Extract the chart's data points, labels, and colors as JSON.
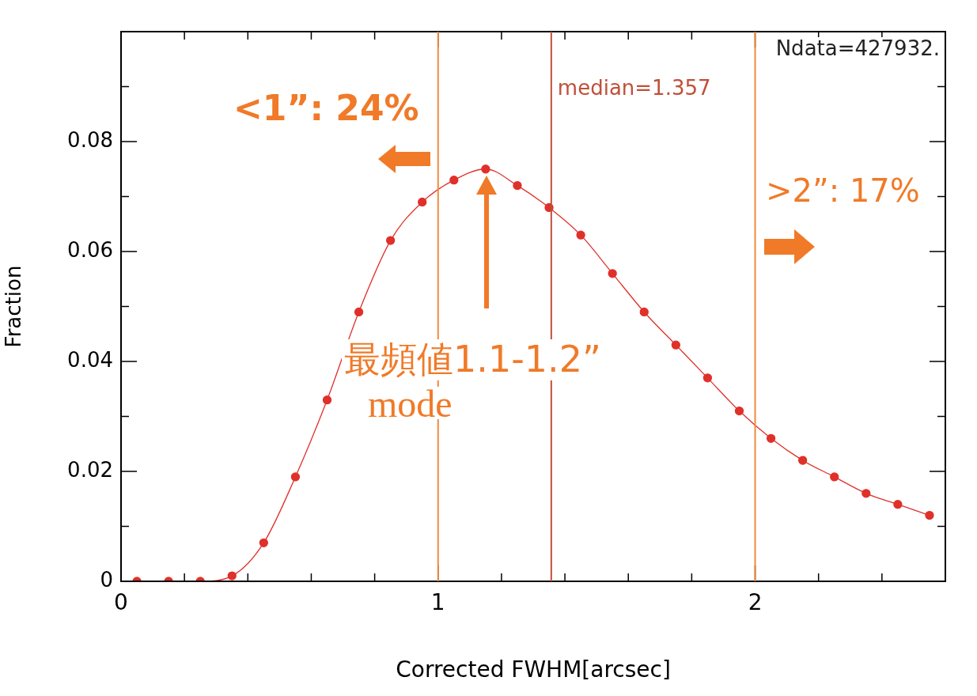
{
  "chart_data": {
    "type": "line",
    "xlabel": "Corrected FWHM[arcsec]",
    "ylabel": "Fraction",
    "x": [
      0.05,
      0.15,
      0.25,
      0.35,
      0.45,
      0.55,
      0.65,
      0.75,
      0.85,
      0.95,
      1.05,
      1.15,
      1.25,
      1.35,
      1.45,
      1.55,
      1.65,
      1.75,
      1.85,
      1.95,
      2.05,
      2.15,
      2.25,
      2.35,
      2.45,
      2.55
    ],
    "series": [
      {
        "color": "#e0302a",
        "values": [
          0,
          0,
          0,
          0.001,
          0.007,
          0.019,
          0.033,
          0.049,
          0.062,
          0.069,
          0.073,
          0.075,
          0.072,
          0.068,
          0.063,
          0.056,
          0.049,
          0.043,
          0.037,
          0.031,
          0.026,
          0.022,
          0.019,
          0.016,
          0.014,
          0.012
        ]
      }
    ],
    "marker": "circle",
    "line_style": "solid",
    "grid": false,
    "legend": false,
    "xlim": [
      0,
      2.6
    ],
    "ylim": [
      0,
      0.1
    ],
    "xticks": [
      0,
      {
        "value": 0.2,
        "label": null
      },
      {
        "value": 0.4,
        "label": null
      },
      {
        "value": 0.6,
        "label": null
      },
      {
        "value": 0.8,
        "label": null
      },
      1,
      {
        "value": 1.2,
        "label": null
      },
      {
        "value": 1.4,
        "label": null
      },
      {
        "value": 1.6,
        "label": null
      },
      {
        "value": 1.8,
        "label": null
      },
      2,
      {
        "value": 2.2,
        "label": null
      },
      {
        "value": 2.4,
        "label": null
      }
    ],
    "yticks": [
      0,
      {
        "value": 0.01,
        "label": null
      },
      0.02,
      {
        "value": 0.03,
        "label": null
      },
      0.04,
      {
        "value": 0.05,
        "label": null
      },
      0.06,
      {
        "value": 0.07,
        "label": null
      },
      0.08,
      {
        "value": 0.09,
        "label": null
      }
    ],
    "ref_lines": [
      {
        "axis": "x",
        "value": 1,
        "color": "#f08a3c"
      },
      {
        "axis": "x",
        "value": 1.357,
        "label": "median=1.357",
        "color": "#c0503a"
      },
      {
        "axis": "x",
        "value": 2,
        "color": "#f08a3c"
      }
    ],
    "annotations": [
      "Ndata=427932.",
      "<1”: 24%",
      ">2”: 17%",
      "最頻値1.1-1.2”",
      "mode"
    ]
  }
}
